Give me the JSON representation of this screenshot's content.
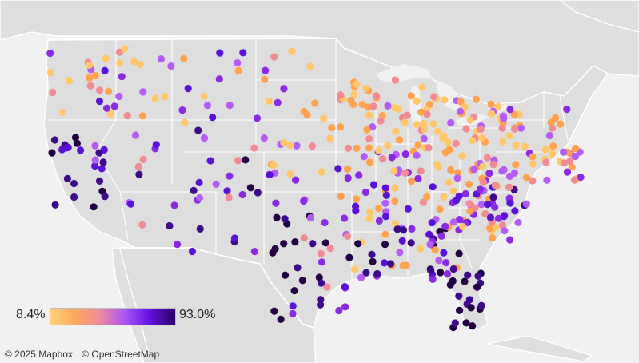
{
  "legend": {
    "min_label": "8.4%",
    "max_label": "93.0%",
    "gradient_colors": [
      "#ffd27a",
      "#fca85c",
      "#f089a0",
      "#a855f7",
      "#6210e0",
      "#2a0066"
    ]
  },
  "attribution": {
    "mapbox": "© 2025 Mapbox",
    "osm": "© OpenStreetMap"
  },
  "colors": {
    "water": "#f1f1f1",
    "land": "#dcdcdc",
    "border": "#ffffff",
    "point_scale": [
      "#ffc76a",
      "#ffa24e",
      "#f28a94",
      "#b55cf5",
      "#8a2be2",
      "#5a12d6",
      "#3c0a8a",
      "#200040"
    ]
  }
}
